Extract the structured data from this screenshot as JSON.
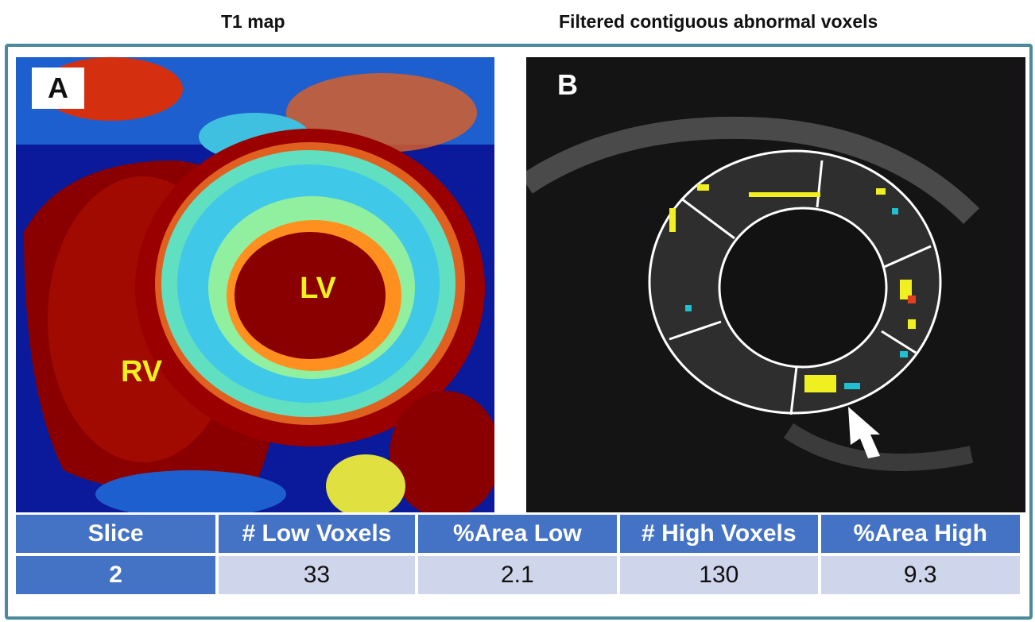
{
  "titles": {
    "left": "T1 map",
    "right": "Filtered contiguous abnormal voxels"
  },
  "panels": {
    "a": {
      "label": "A",
      "annotations": [
        "LV",
        "RV"
      ]
    },
    "b": {
      "label": "B"
    }
  },
  "table": {
    "header": [
      "Slice",
      "# Low Voxels",
      "%Area Low",
      "# High Voxels",
      "%Area High"
    ],
    "rows": [
      [
        2,
        33,
        2.1,
        130,
        9.3
      ]
    ]
  }
}
